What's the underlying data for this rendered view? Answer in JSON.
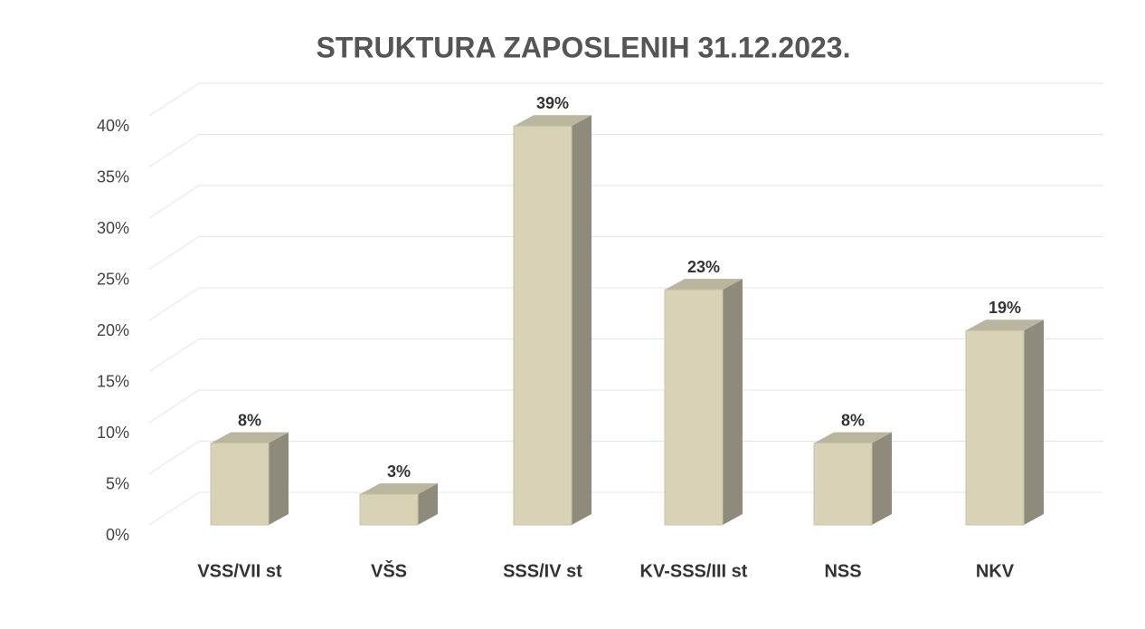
{
  "chart_data": {
    "type": "bar",
    "title": "STRUKTURA ZAPOSLENIH 31.12.2023.",
    "categories": [
      "VSS/VII st",
      "VŠS",
      "SSS/IV st",
      "KV-SSS/III st",
      "NSS",
      "NKV"
    ],
    "values": [
      8,
      3,
      39,
      23,
      8,
      19
    ],
    "value_labels": [
      "8%",
      "3%",
      "39%",
      "23%",
      "8%",
      "19%"
    ],
    "color": "#d8d3b6",
    "ylim": [
      0,
      40
    ],
    "yticks": [
      {
        "value": 0,
        "label": "0%"
      },
      {
        "value": 5,
        "label": "5%"
      },
      {
        "value": 10,
        "label": "10%"
      },
      {
        "value": 15,
        "label": "15%"
      },
      {
        "value": 20,
        "label": "20%"
      },
      {
        "value": 25,
        "label": "25%"
      },
      {
        "value": 30,
        "label": "30%"
      },
      {
        "value": 35,
        "label": "35%"
      },
      {
        "value": 40,
        "label": "40%"
      }
    ],
    "grid": true
  }
}
